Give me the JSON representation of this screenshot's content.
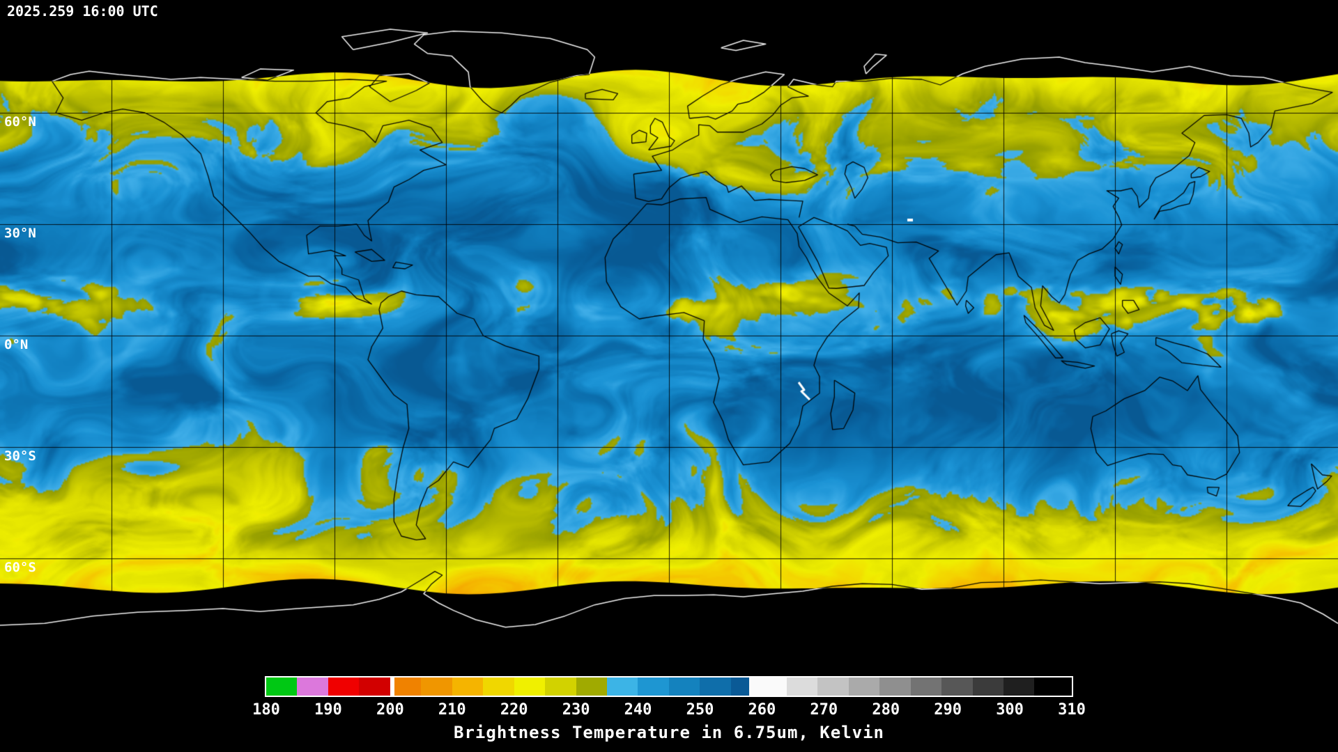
{
  "header": {
    "timestamp": "2025.259 16:00 UTC"
  },
  "map": {
    "latitude_labels": [
      {
        "label": "60°N",
        "lat": 60
      },
      {
        "label": "30°N",
        "lat": 30
      },
      {
        "label": "0°N",
        "lat": 0
      },
      {
        "label": "30°S",
        "lat": -30
      },
      {
        "label": "60°S",
        "lat": -60
      }
    ],
    "grid_step_deg": 30
  },
  "legend": {
    "title": "Brightness Temperature in 6.75um, Kelvin",
    "min": 180,
    "max": 310,
    "ticks": [
      180,
      190,
      200,
      210,
      220,
      230,
      240,
      250,
      260,
      270,
      280,
      290,
      300,
      310
    ],
    "segments": [
      {
        "from": 180,
        "to": 185,
        "color": "#00c814"
      },
      {
        "from": 185,
        "to": 190,
        "color": "#dc78dc"
      },
      {
        "from": 190,
        "to": 195,
        "color": "#f00000"
      },
      {
        "from": 195,
        "to": 200,
        "color": "#d20000"
      },
      {
        "from": 200,
        "to": 200.7,
        "color": "#ffffff"
      },
      {
        "from": 200.7,
        "to": 205,
        "color": "#f08200"
      },
      {
        "from": 205,
        "to": 210,
        "color": "#f09600"
      },
      {
        "from": 210,
        "to": 215,
        "color": "#f5b400"
      },
      {
        "from": 215,
        "to": 220,
        "color": "#f0d700"
      },
      {
        "from": 220,
        "to": 225,
        "color": "#f0f000"
      },
      {
        "from": 225,
        "to": 230,
        "color": "#d2d200"
      },
      {
        "from": 230,
        "to": 235,
        "color": "#a0aa00"
      },
      {
        "from": 235,
        "to": 240,
        "color": "#3cb4e6"
      },
      {
        "from": 240,
        "to": 245,
        "color": "#1e96d2"
      },
      {
        "from": 245,
        "to": 250,
        "color": "#1482be"
      },
      {
        "from": 250,
        "to": 255,
        "color": "#0f6eaa"
      },
      {
        "from": 255,
        "to": 258,
        "color": "#0a5a96"
      },
      {
        "from": 258,
        "to": 264,
        "color": "#fafafa"
      },
      {
        "from": 264,
        "to": 269,
        "color": "#dcdcdc"
      },
      {
        "from": 269,
        "to": 274,
        "color": "#c3c3c3"
      },
      {
        "from": 274,
        "to": 279,
        "color": "#aaaaaa"
      },
      {
        "from": 279,
        "to": 284,
        "color": "#8f8f8f"
      },
      {
        "from": 284,
        "to": 289,
        "color": "#737373"
      },
      {
        "from": 289,
        "to": 294,
        "color": "#575757"
      },
      {
        "from": 294,
        "to": 299,
        "color": "#3b3b3b"
      },
      {
        "from": 299,
        "to": 304,
        "color": "#1f1f1f"
      },
      {
        "from": 304,
        "to": 310,
        "color": "#000000"
      }
    ]
  },
  "colors": {
    "background": "#000000",
    "text": "#ffffff",
    "grid": "#000000",
    "coastline_on_data": "#000000",
    "coastline_on_space": "#f0f0f0"
  }
}
